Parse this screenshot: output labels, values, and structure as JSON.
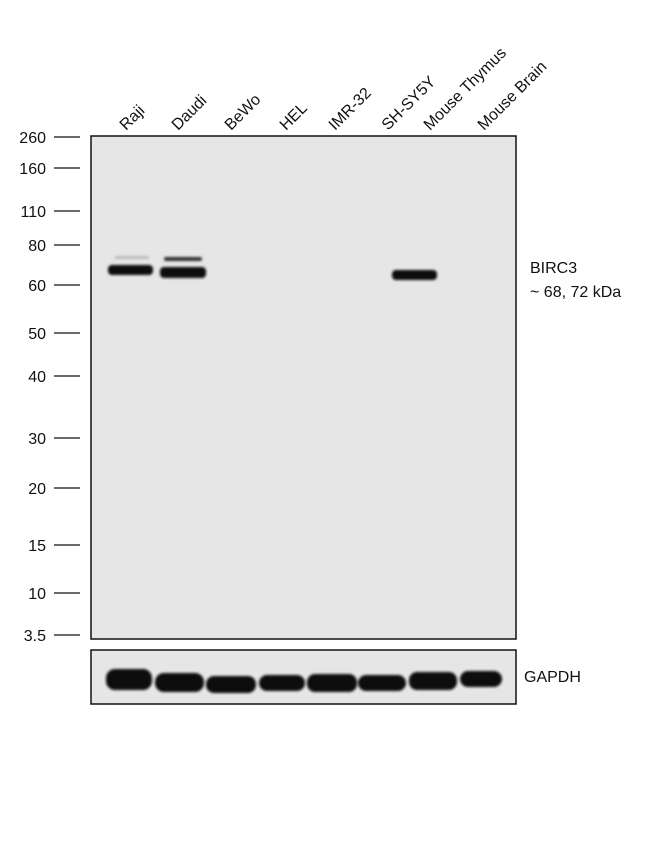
{
  "lanes": [
    "Raji",
    "Daudi",
    "BeWo",
    "HEL",
    "IMR-32",
    "SH-SY5Y",
    "Mouse Thymus",
    "Mouse Brain"
  ],
  "markers": [
    "260",
    "160",
    "110",
    "80",
    "60",
    "50",
    "40",
    "30",
    "20",
    "15",
    "10",
    "3.5"
  ],
  "target": {
    "name": "BIRC3",
    "size": "~ 68, 72 kDa"
  },
  "loading_control": "GAPDH"
}
